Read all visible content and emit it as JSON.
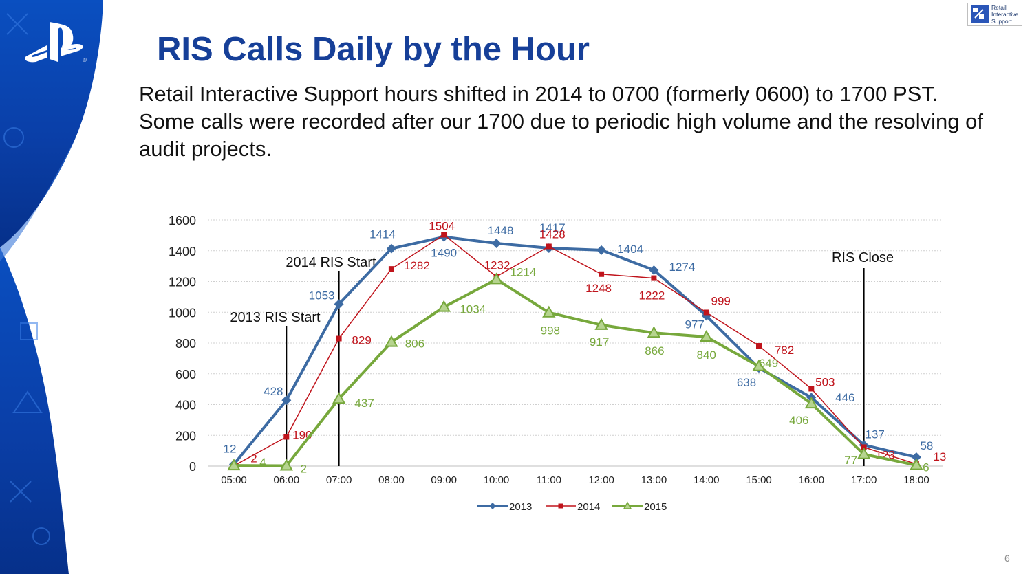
{
  "slide": {
    "title": "RIS Calls Daily by the Hour",
    "description": "Retail Interactive Support hours shifted in 2014 to 0700 (formerly 0600) to 1700 PST. Some calls were recorded after our 1700 due to periodic high volume and the resolving of audit projects.",
    "logo_lines": [
      "Retail",
      "Interactive",
      "Support"
    ],
    "page_number": "6"
  },
  "colors": {
    "title": "#163f98",
    "sidebar_blue": "#0a3fa8",
    "series_2013": "#3d6ba3",
    "series_2014": "#c0141c",
    "series_2015": "#77a83c"
  },
  "chart_data": {
    "type": "line",
    "categories": [
      "05:00",
      "06:00",
      "07:00",
      "08:00",
      "09:00",
      "10:00",
      "11:00",
      "12:00",
      "13:00",
      "14:00",
      "15:00",
      "16:00",
      "17:00",
      "18:00"
    ],
    "series": [
      {
        "name": "2013",
        "values": [
          12,
          428,
          1053,
          1414,
          1490,
          1448,
          1417,
          1404,
          1274,
          977,
          638,
          446,
          137,
          58
        ],
        "marker": "diamond",
        "color": "#3d6ba3"
      },
      {
        "name": "2014",
        "values": [
          2,
          190,
          829,
          1282,
          1504,
          1232,
          1428,
          1248,
          1222,
          999,
          782,
          503,
          123,
          13
        ],
        "marker": "square",
        "color": "#c0141c"
      },
      {
        "name": "2015",
        "values": [
          4,
          2,
          437,
          806,
          1034,
          1214,
          998,
          917,
          866,
          840,
          649,
          406,
          77,
          6
        ],
        "marker": "triangle",
        "color": "#77a83c"
      }
    ],
    "ylim": [
      0,
      1600
    ],
    "yticks": [
      0,
      200,
      400,
      600,
      800,
      1000,
      1200,
      1400,
      1600
    ],
    "grid": true,
    "legend_position": "bottom",
    "annotations": [
      {
        "text": "2013 RIS Start",
        "x": "06:00"
      },
      {
        "text": "2014 RIS Start",
        "x": "07:00"
      },
      {
        "text": "RIS Close",
        "x": "17:00"
      }
    ]
  }
}
